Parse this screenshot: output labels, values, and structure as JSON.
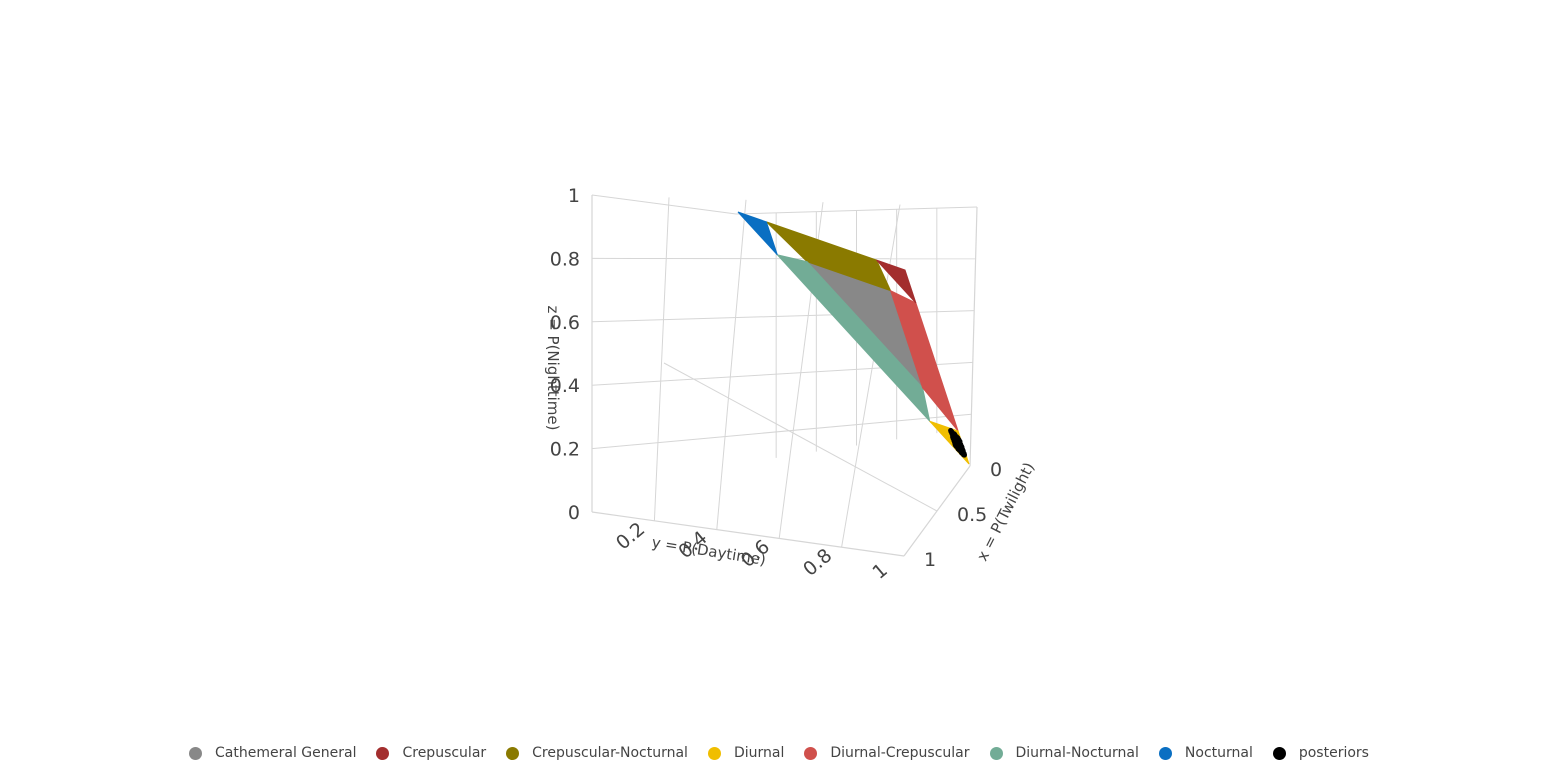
{
  "chart_data": {
    "type": "scatter3d",
    "axes": {
      "x": {
        "title": "x = P(Twilight)",
        "ticks": [
          "0",
          "0.5",
          "1"
        ],
        "range": [
          0,
          1
        ]
      },
      "y": {
        "title": "y = P(Daytime)",
        "ticks": [
          "0.2",
          "0.4",
          "0.6",
          "0.8",
          "1"
        ],
        "range": [
          0,
          1
        ]
      },
      "z": {
        "title": "z = P(Nighttime)",
        "ticks": [
          "0",
          "0.2",
          "0.4",
          "0.6",
          "0.8",
          "1"
        ],
        "range": [
          0,
          1
        ]
      }
    },
    "grid": true,
    "legend_position": "bottom",
    "series": [
      {
        "name": "Cathemeral General",
        "color": "#888888",
        "region": "simplex interior",
        "vertices": [
          [
            0.67,
            0.17,
            0.17
          ],
          [
            0.17,
            0.67,
            0.17
          ],
          [
            0.17,
            0.17,
            0.67
          ]
        ]
      },
      {
        "name": "Crepuscular",
        "color": "#a32e2e",
        "region": "twilight corner",
        "vertices": [
          [
            1,
            0,
            0
          ],
          [
            0.83,
            0.17,
            0
          ],
          [
            0.83,
            0,
            0.17
          ]
        ]
      },
      {
        "name": "Crepuscular-Nocturnal",
        "color": "#8a7a00",
        "region": "twilight-night edge",
        "vertices": [
          [
            0.83,
            0,
            0.17
          ],
          [
            0.17,
            0,
            0.83
          ],
          [
            0.17,
            0.17,
            0.67
          ],
          [
            0.67,
            0.17,
            0.17
          ]
        ]
      },
      {
        "name": "Diurnal",
        "color": "#f0be00",
        "region": "daytime corner",
        "vertices": [
          [
            0,
            1,
            0
          ],
          [
            0.17,
            0.83,
            0
          ],
          [
            0,
            0.83,
            0.17
          ]
        ]
      },
      {
        "name": "Diurnal-Crepuscular",
        "color": "#d0504c",
        "region": "twilight-day edge",
        "vertices": [
          [
            0.83,
            0.17,
            0
          ],
          [
            0.17,
            0.83,
            0
          ],
          [
            0.17,
            0.67,
            0.17
          ],
          [
            0.67,
            0.17,
            0.17
          ]
        ]
      },
      {
        "name": "Diurnal-Nocturnal",
        "color": "#72ac96",
        "region": "day-night edge",
        "vertices": [
          [
            0,
            0.83,
            0.17
          ],
          [
            0,
            0.17,
            0.83
          ],
          [
            0.17,
            0.17,
            0.67
          ],
          [
            0.17,
            0.67,
            0.17
          ]
        ]
      },
      {
        "name": "Nocturnal",
        "color": "#0a6fc2",
        "region": "nighttime corner",
        "vertices": [
          [
            0,
            0,
            1
          ],
          [
            0,
            0.17,
            0.83
          ],
          [
            0.17,
            0,
            0.83
          ]
        ]
      },
      {
        "name": "posteriors",
        "color": "#000000",
        "region": "posterior samples near daytime corner",
        "center": [
          0.07,
          0.9,
          0.03
        ]
      }
    ]
  }
}
